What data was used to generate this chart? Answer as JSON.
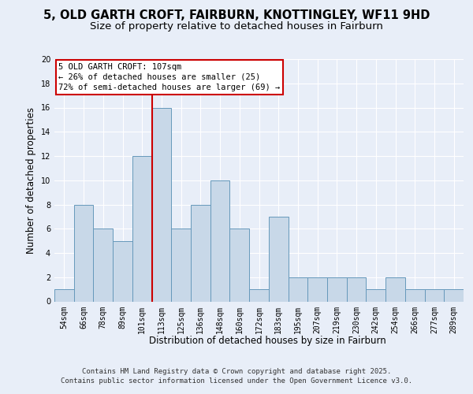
{
  "title_line1": "5, OLD GARTH CROFT, FAIRBURN, KNOTTINGLEY, WF11 9HD",
  "title_line2": "Size of property relative to detached houses in Fairburn",
  "xlabel": "Distribution of detached houses by size in Fairburn",
  "ylabel": "Number of detached properties",
  "categories": [
    "54sqm",
    "66sqm",
    "78sqm",
    "89sqm",
    "101sqm",
    "113sqm",
    "125sqm",
    "136sqm",
    "148sqm",
    "160sqm",
    "172sqm",
    "183sqm",
    "195sqm",
    "207sqm",
    "219sqm",
    "230sqm",
    "242sqm",
    "254sqm",
    "266sqm",
    "277sqm",
    "289sqm"
  ],
  "values": [
    1,
    8,
    6,
    5,
    12,
    16,
    6,
    8,
    10,
    6,
    1,
    7,
    2,
    2,
    2,
    2,
    1,
    2,
    1,
    1,
    1
  ],
  "bar_color": "#c8d8e8",
  "bar_edgecolor": "#6699bb",
  "vline_x": 4.5,
  "vline_color": "#cc0000",
  "annotation_text": "5 OLD GARTH CROFT: 107sqm\n← 26% of detached houses are smaller (25)\n72% of semi-detached houses are larger (69) →",
  "annotation_box_edgecolor": "#cc0000",
  "annotation_box_facecolor": "#ffffff",
  "ylim": [
    0,
    20
  ],
  "yticks": [
    0,
    2,
    4,
    6,
    8,
    10,
    12,
    14,
    16,
    18,
    20
  ],
  "footer_text": "Contains HM Land Registry data © Crown copyright and database right 2025.\nContains public sector information licensed under the Open Government Licence v3.0.",
  "background_color": "#e8eef8",
  "plot_bg_color": "#e8eef8",
  "grid_color": "#ffffff",
  "title_fontsize": 10.5,
  "subtitle_fontsize": 9.5,
  "label_fontsize": 8.5,
  "tick_fontsize": 7,
  "footer_fontsize": 6.5,
  "annotation_fontsize": 7.5
}
